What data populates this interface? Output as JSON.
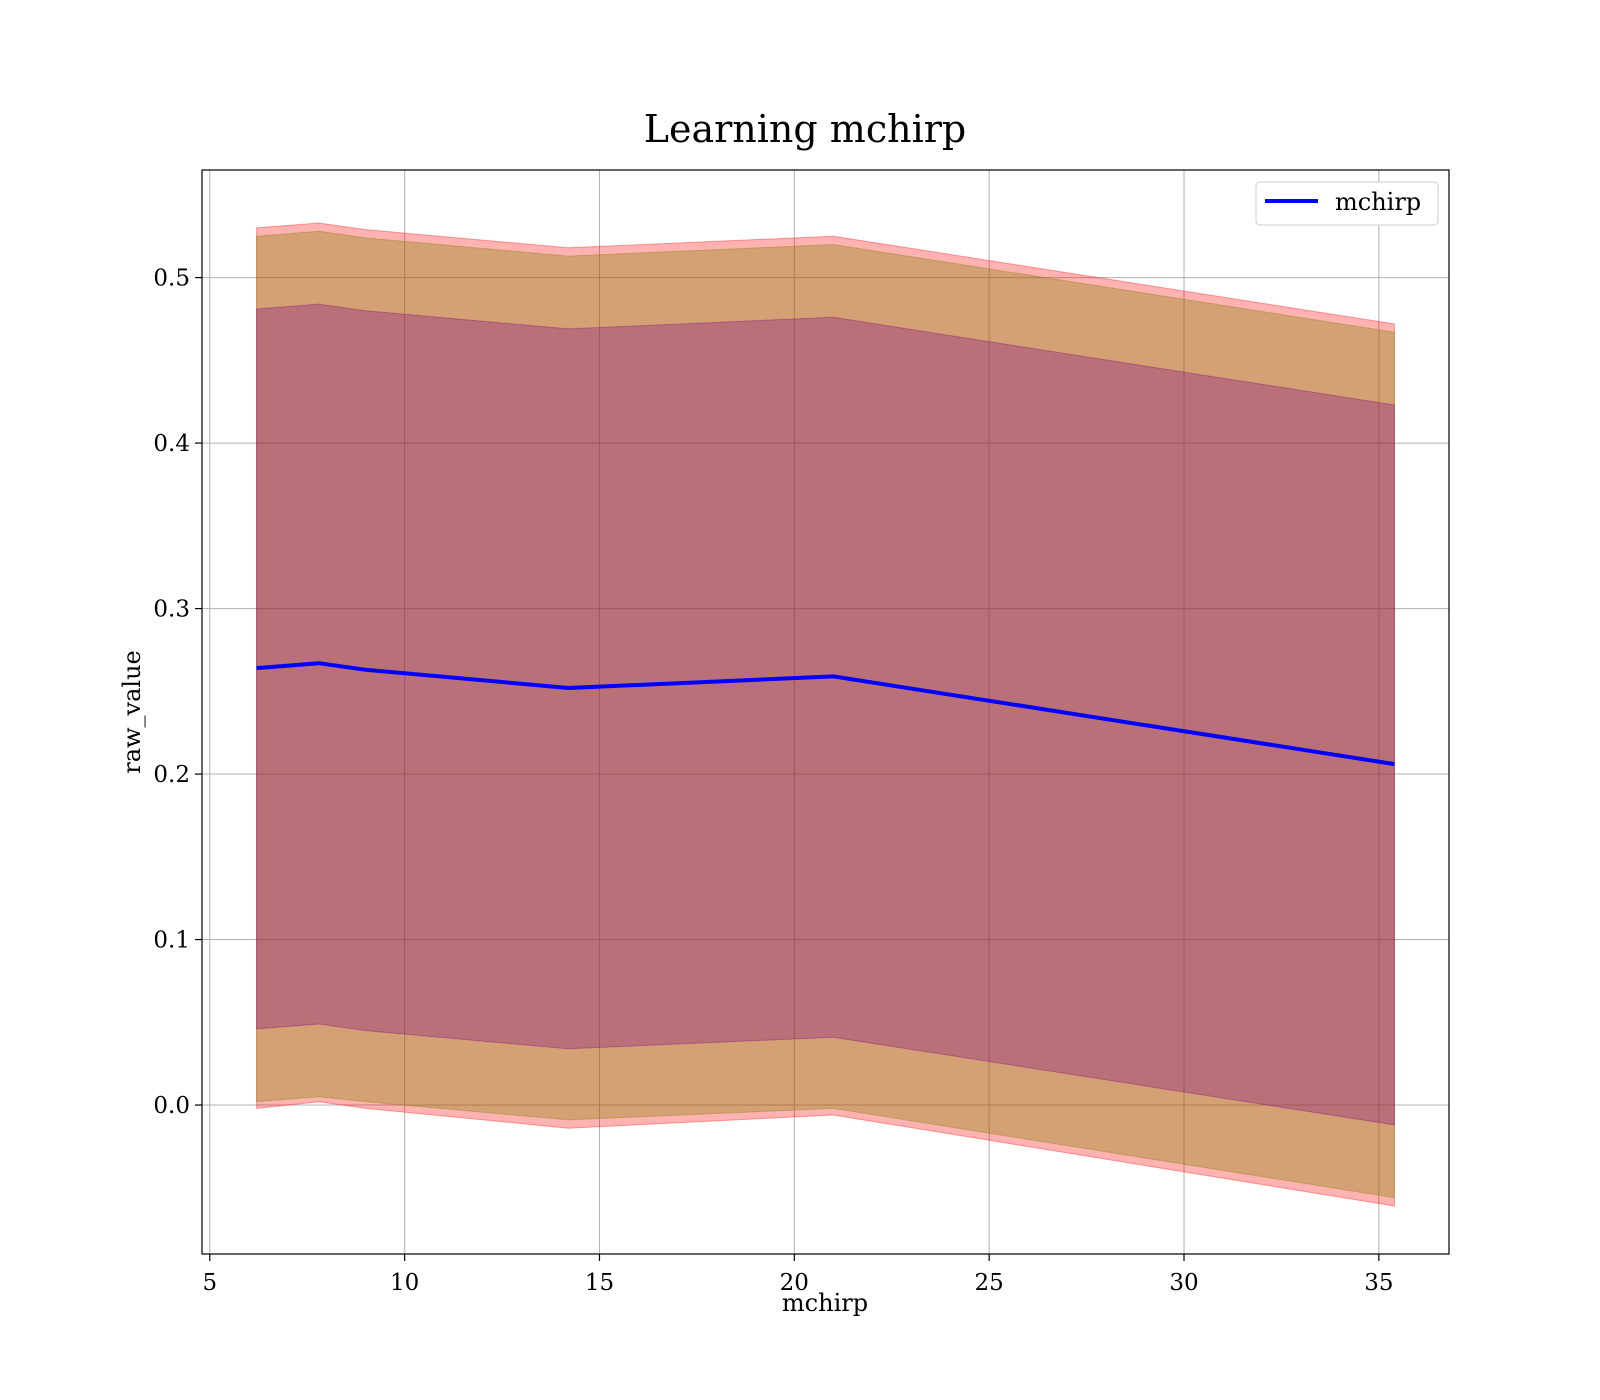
{
  "chart_data": {
    "type": "line",
    "title": "Learning mchirp",
    "xlabel": "mchirp",
    "ylabel": "raw_value",
    "xlim": [
      4.8,
      36.8
    ],
    "ylim": [
      -0.09,
      0.565
    ],
    "x_ticks": [
      5,
      10,
      15,
      20,
      25,
      30,
      35
    ],
    "x_tick_labels": [
      "5",
      "10",
      "15",
      "20",
      "25",
      "30",
      "35"
    ],
    "y_ticks": [
      0.0,
      0.1,
      0.2,
      0.3,
      0.4,
      0.5
    ],
    "y_tick_labels": [
      "0.0",
      "0.1",
      "0.2",
      "0.3",
      "0.4",
      "0.5"
    ],
    "grid": true,
    "legend_position": "top-right",
    "x": [
      6.2,
      7.8,
      9.0,
      14.2,
      21.0,
      35.4
    ],
    "series": [
      {
        "name": "mchirp",
        "color": "#0000ff",
        "values": [
          0.264,
          0.267,
          0.263,
          0.252,
          0.259,
          0.206
        ]
      }
    ],
    "bands": [
      {
        "color": "#ff0000",
        "opacity": 0.3,
        "lower": [
          -0.002,
          0.002,
          -0.002,
          -0.014,
          -0.006,
          -0.061
        ],
        "upper": [
          0.53,
          0.533,
          0.529,
          0.518,
          0.525,
          0.472
        ]
      },
      {
        "color": "#808000",
        "opacity": 0.35,
        "lower": [
          0.002,
          0.005,
          0.002,
          -0.009,
          -0.002,
          -0.056
        ],
        "upper": [
          0.525,
          0.528,
          0.524,
          0.513,
          0.52,
          0.467
        ]
      },
      {
        "color": "#800080",
        "opacity": 0.3,
        "lower": [
          0.046,
          0.049,
          0.045,
          0.034,
          0.041,
          -0.012
        ],
        "upper": [
          0.481,
          0.484,
          0.48,
          0.469,
          0.476,
          0.423
        ]
      }
    ]
  }
}
